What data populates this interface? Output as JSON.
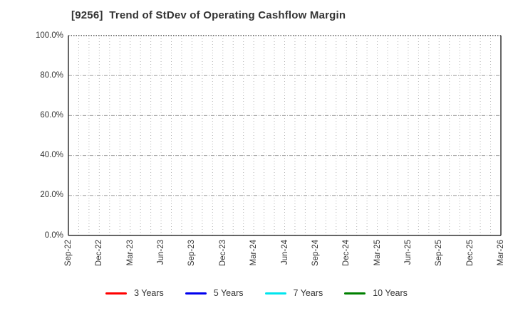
{
  "chart_data": {
    "type": "line",
    "title": "[9256]  Trend of StDev of Operating Cashflow Margin",
    "xlabel": "",
    "ylabel": "",
    "ylim": [
      0,
      100
    ],
    "y_tick_labels": [
      "0.0%",
      "20.0%",
      "40.0%",
      "60.0%",
      "80.0%",
      "100.0%"
    ],
    "y_tick_values": [
      0,
      20,
      40,
      60,
      80,
      100
    ],
    "x_tick_labels": [
      "Sep-22",
      "Dec-22",
      "Mar-23",
      "Jun-23",
      "Sep-23",
      "Dec-23",
      "Mar-24",
      "Jun-24",
      "Sep-24",
      "Dec-24",
      "Mar-25",
      "Jun-25",
      "Sep-25",
      "Dec-25",
      "Mar-26"
    ],
    "x_minor_divisions_per_major": 3,
    "grid": true,
    "legend_position": "bottom",
    "series": [
      {
        "name": "3 Years",
        "color": "#ff0000",
        "values": []
      },
      {
        "name": "5 Years",
        "color": "#0000ee",
        "values": []
      },
      {
        "name": "7 Years",
        "color": "#00e5ee",
        "values": []
      },
      {
        "name": "10 Years",
        "color": "#008000",
        "values": []
      }
    ],
    "plot_is_empty": true
  },
  "colors": {
    "background": "#ffffff",
    "title_text": "#333333",
    "tick_text": "#333333",
    "grid_minor_vertical": "#b5b5b5",
    "grid_major_horizontal": "#9e9e9e",
    "spine": "#333333"
  }
}
